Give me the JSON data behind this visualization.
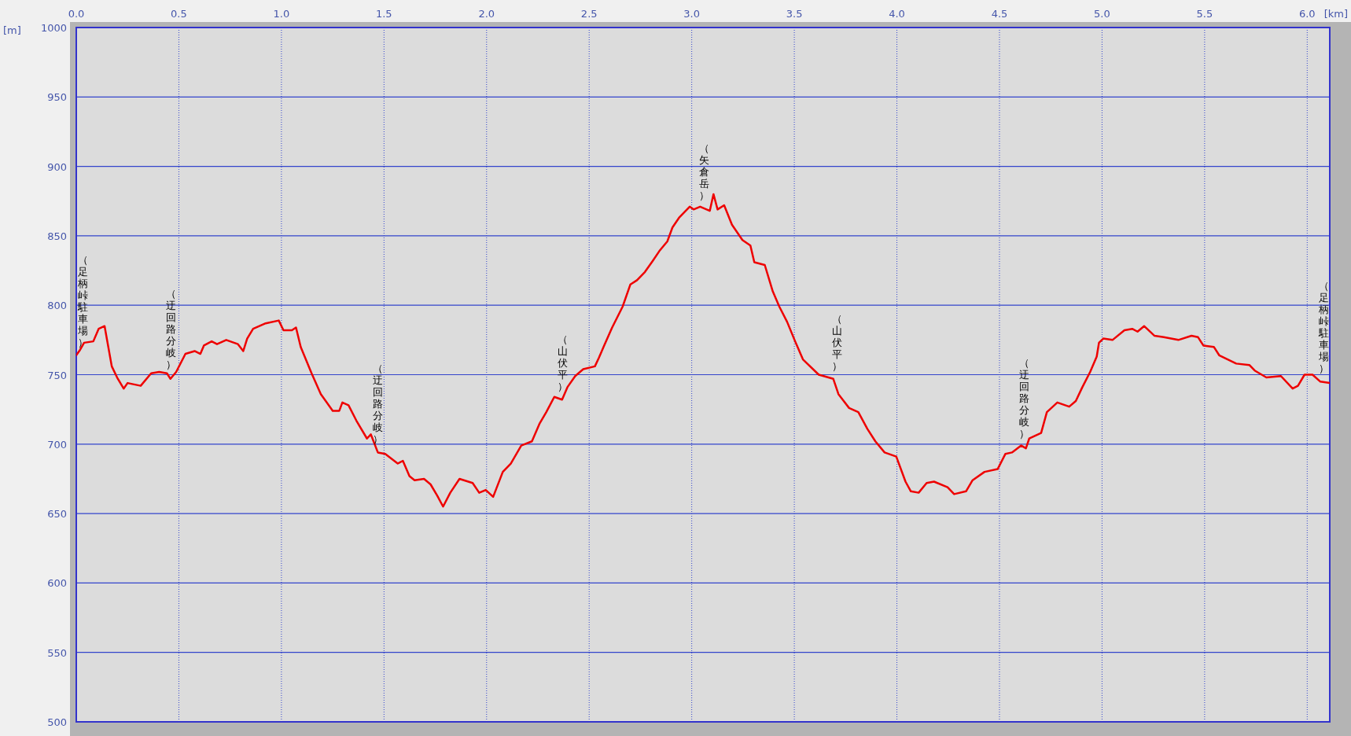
{
  "chart_data": {
    "type": "line",
    "xlabel": "[km]",
    "ylabel": "[m]",
    "xlim": [
      0,
      6.11
    ],
    "ylim": [
      500,
      1000
    ],
    "xticks": [
      {
        "value": 0,
        "label": "0.0"
      },
      0.5,
      {
        "value": 1,
        "label": "1.0"
      },
      1.5,
      {
        "value": 2,
        "label": "2.0"
      },
      2.5,
      {
        "value": 3,
        "label": "3.0"
      },
      3.5,
      {
        "value": 4,
        "label": "4.0"
      },
      4.5,
      {
        "value": 5,
        "label": "5.0"
      },
      5.5,
      {
        "value": 6,
        "label": "6.0"
      }
    ],
    "yticks": [
      500,
      550,
      600,
      650,
      700,
      750,
      800,
      850,
      900,
      950,
      1000
    ],
    "grid": true,
    "marker": "none",
    "series": [
      {
        "color": "#ee0000",
        "x": [
          0,
          0.019,
          0.038,
          0.083,
          0.109,
          0.138,
          0.173,
          0.199,
          0.231,
          0.25,
          0.314,
          0.365,
          0.404,
          0.442,
          0.459,
          0.487,
          0.532,
          0.577,
          0.605,
          0.622,
          0.66,
          0.686,
          0.731,
          0.788,
          0.814,
          0.833,
          0.862,
          0.923,
          0.987,
          1.01,
          1.051,
          1.071,
          1.094,
          1.147,
          1.192,
          1.25,
          1.282,
          1.297,
          1.327,
          1.365,
          1.417,
          1.436,
          1.47,
          1.506,
          1.567,
          1.592,
          1.624,
          1.649,
          1.695,
          1.727,
          1.759,
          1.788,
          1.823,
          1.868,
          1.932,
          1.964,
          1.996,
          2.032,
          2.079,
          2.118,
          2.169,
          2.221,
          2.259,
          2.291,
          2.33,
          2.368,
          2.394,
          2.432,
          2.471,
          2.528,
          2.547,
          2.573,
          2.612,
          2.663,
          2.701,
          2.733,
          2.772,
          2.81,
          2.842,
          2.881,
          2.906,
          2.938,
          2.99,
          3.009,
          3.041,
          3.088,
          3.106,
          3.126,
          3.158,
          3.196,
          3.247,
          3.286,
          3.305,
          3.356,
          3.395,
          3.427,
          3.465,
          3.504,
          3.542,
          3.619,
          3.69,
          3.715,
          3.767,
          3.812,
          3.856,
          3.895,
          3.94,
          3.997,
          4.042,
          4.068,
          4.106,
          4.145,
          4.181,
          4.247,
          4.279,
          4.337,
          4.369,
          4.427,
          4.491,
          4.529,
          4.561,
          4.606,
          4.629,
          4.645,
          4.703,
          4.731,
          4.782,
          4.84,
          4.872,
          4.904,
          4.942,
          4.974,
          4.985,
          5.006,
          5.051,
          5.109,
          5.147,
          5.173,
          5.205,
          5.256,
          5.301,
          5.372,
          5.436,
          5.468,
          5.494,
          5.545,
          5.571,
          5.654,
          5.718,
          5.744,
          5.801,
          5.872,
          5.929,
          5.955,
          5.987,
          6.026,
          6.064,
          6.109
        ],
        "values": [
          764,
          768,
          773,
          774,
          783,
          785,
          756,
          748,
          740,
          744,
          742,
          751,
          752,
          751,
          747,
          752,
          765,
          767,
          765,
          771,
          774,
          772,
          775,
          772,
          767,
          776,
          783,
          787,
          789,
          782,
          782,
          784,
          770,
          751,
          736,
          724,
          724,
          730,
          728,
          717,
          704,
          707,
          694,
          693,
          686,
          688,
          677,
          674,
          675,
          671,
          663,
          655,
          665,
          675,
          672,
          665,
          667,
          662,
          680,
          686,
          699,
          702,
          715,
          723,
          734,
          732,
          741,
          749,
          754,
          756,
          762,
          771,
          784,
          799,
          815,
          818,
          824,
          832,
          839,
          846,
          856,
          863,
          871,
          869,
          871,
          868,
          880,
          869,
          872,
          858,
          847,
          843,
          831,
          829,
          810,
          799,
          788,
          774,
          761,
          750,
          747,
          736,
          726,
          723,
          711,
          702,
          694,
          691,
          673,
          666,
          665,
          672,
          673,
          669,
          664,
          666,
          674,
          680,
          682,
          693,
          694,
          699,
          697,
          704,
          708,
          723,
          730,
          727,
          731,
          741,
          752,
          763,
          773,
          776,
          775,
          782,
          783,
          781,
          785,
          778,
          777,
          775,
          778,
          777,
          771,
          770,
          764,
          758,
          757,
          753,
          748,
          749,
          740,
          742,
          750,
          750,
          745,
          744
        ]
      }
    ],
    "annotations": [
      {
        "text": "（足柄峠駐車場）",
        "x": 0,
        "y": 764
      },
      {
        "text": "（迂回路分岐）",
        "x": 0.46,
        "y": 748
      },
      {
        "text": "（迂回路分岐）",
        "x": 1.47,
        "y": 694
      },
      {
        "text": "（山伏平）",
        "x": 2.37,
        "y": 732
      },
      {
        "text": "（矢倉岳）",
        "x": 3.06,
        "y": 870
      },
      {
        "text": "（山伏平）",
        "x": 3.71,
        "y": 747
      },
      {
        "text": "（迂回路分岐）",
        "x": 4.62,
        "y": 698
      },
      {
        "text": "（足柄峠駐車場）",
        "x": 6.09,
        "y": 745
      }
    ]
  }
}
